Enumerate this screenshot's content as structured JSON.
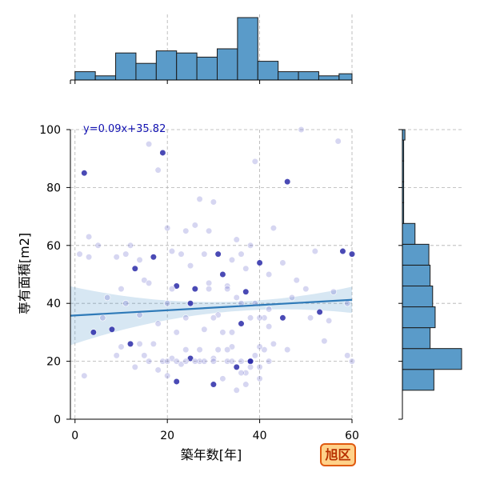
{
  "chart_data": {
    "type": "scatter",
    "xlabel": "築年数[年]",
    "ylabel": "専有面積[m2]",
    "xlim": [
      -1,
      60
    ],
    "ylim": [
      0,
      100
    ],
    "x_ticks": [
      0,
      20,
      40,
      60
    ],
    "y_ticks": [
      0,
      20,
      40,
      60,
      80,
      100
    ],
    "grid": true,
    "regression": {
      "slope": 0.09,
      "intercept": 35.82,
      "label": "y=0.09x+35.82"
    },
    "badge": "旭区",
    "marginal_x": {
      "bin_edges": [
        0,
        4.4,
        8.8,
        13.2,
        17.6,
        22.0,
        26.4,
        30.8,
        35.2,
        39.6,
        44.0,
        48.4,
        52.8,
        57.2,
        61.6
      ],
      "counts": [
        4,
        2,
        13,
        8,
        14,
        13,
        11,
        15,
        30,
        9,
        4,
        4,
        2,
        3
      ]
    },
    "marginal_y": {
      "bin_edges": [
        10,
        17.2,
        24.4,
        31.6,
        38.8,
        46.0,
        53.2,
        60.4,
        67.6,
        74.8,
        82.0,
        89.2,
        96.4,
        100
      ],
      "counts": [
        25,
        47,
        22,
        26,
        24,
        22,
        21,
        10,
        1,
        1,
        1,
        1,
        2
      ]
    },
    "points": [
      [
        2,
        85
      ],
      [
        2,
        15
      ],
      [
        3,
        63
      ],
      [
        3,
        56
      ],
      [
        4,
        30
      ],
      [
        5,
        60
      ],
      [
        1,
        57
      ],
      [
        6,
        35
      ],
      [
        7,
        42
      ],
      [
        8,
        31
      ],
      [
        9,
        56
      ],
      [
        9,
        22
      ],
      [
        10,
        45
      ],
      [
        10,
        25
      ],
      [
        11,
        57
      ],
      [
        11,
        40
      ],
      [
        12,
        60
      ],
      [
        12,
        26
      ],
      [
        13,
        52
      ],
      [
        13,
        18
      ],
      [
        14,
        55
      ],
      [
        14,
        36
      ],
      [
        15,
        48
      ],
      [
        15,
        22
      ],
      [
        16,
        95
      ],
      [
        16,
        47
      ],
      [
        17,
        26
      ],
      [
        17,
        56
      ],
      [
        18,
        86
      ],
      [
        18,
        33
      ],
      [
        19,
        92
      ],
      [
        19,
        20
      ],
      [
        20,
        66
      ],
      [
        20,
        40
      ],
      [
        21,
        58
      ],
      [
        21,
        21
      ],
      [
        22,
        46
      ],
      [
        22,
        30
      ],
      [
        23,
        57
      ],
      [
        23,
        19
      ],
      [
        24,
        65
      ],
      [
        24,
        35
      ],
      [
        25,
        53
      ],
      [
        25,
        21
      ],
      [
        26,
        67
      ],
      [
        26,
        45
      ],
      [
        27,
        76
      ],
      [
        27,
        20
      ],
      [
        28,
        57
      ],
      [
        28,
        31
      ],
      [
        29,
        65
      ],
      [
        29,
        47
      ],
      [
        30,
        75
      ],
      [
        30,
        21
      ],
      [
        31,
        57
      ],
      [
        31,
        36
      ],
      [
        32,
        50
      ],
      [
        32,
        14
      ],
      [
        33,
        46
      ],
      [
        33,
        20
      ],
      [
        34,
        55
      ],
      [
        34,
        25
      ],
      [
        35,
        62
      ],
      [
        35,
        18
      ],
      [
        36,
        57
      ],
      [
        36,
        40
      ],
      [
        37,
        52
      ],
      [
        37,
        16
      ],
      [
        38,
        60
      ],
      [
        38,
        20
      ],
      [
        39,
        89
      ],
      [
        39,
        22
      ],
      [
        40,
        54
      ],
      [
        40,
        18
      ],
      [
        41,
        35
      ],
      [
        41,
        24
      ],
      [
        42,
        50
      ],
      [
        42,
        38
      ],
      [
        43,
        66
      ],
      [
        43,
        26
      ],
      [
        45,
        54
      ],
      [
        45,
        35
      ],
      [
        46,
        82
      ],
      [
        46,
        24
      ],
      [
        47,
        42
      ],
      [
        48,
        48
      ],
      [
        49,
        100
      ],
      [
        50,
        45
      ],
      [
        51,
        35
      ],
      [
        52,
        58
      ],
      [
        53,
        37
      ],
      [
        54,
        27
      ],
      [
        55,
        34
      ],
      [
        56,
        44
      ],
      [
        57,
        96
      ],
      [
        58,
        58
      ],
      [
        59,
        22
      ],
      [
        59,
        40
      ],
      [
        60,
        20
      ],
      [
        60,
        57
      ],
      [
        20,
        20
      ],
      [
        22,
        20
      ],
      [
        24,
        20
      ],
      [
        26,
        20
      ],
      [
        28,
        20
      ],
      [
        30,
        20
      ],
      [
        34,
        20
      ],
      [
        36,
        20
      ],
      [
        38,
        20
      ],
      [
        24,
        24
      ],
      [
        27,
        24
      ],
      [
        31,
        24
      ],
      [
        33,
        24
      ],
      [
        36,
        16
      ],
      [
        38,
        18
      ],
      [
        40,
        25
      ],
      [
        21,
        45
      ],
      [
        25,
        40
      ],
      [
        29,
        45
      ],
      [
        33,
        45
      ],
      [
        35,
        42
      ],
      [
        37,
        44
      ],
      [
        39,
        40
      ],
      [
        30,
        35
      ],
      [
        32,
        30
      ],
      [
        34,
        30
      ],
      [
        36,
        33
      ],
      [
        38,
        35
      ],
      [
        40,
        35
      ],
      [
        42,
        32
      ],
      [
        14,
        26
      ],
      [
        16,
        20
      ],
      [
        18,
        17
      ],
      [
        20,
        15
      ],
      [
        22,
        13
      ],
      [
        30,
        12
      ],
      [
        35,
        10
      ],
      [
        37,
        12
      ],
      [
        40,
        14
      ],
      [
        42,
        20
      ]
    ]
  }
}
